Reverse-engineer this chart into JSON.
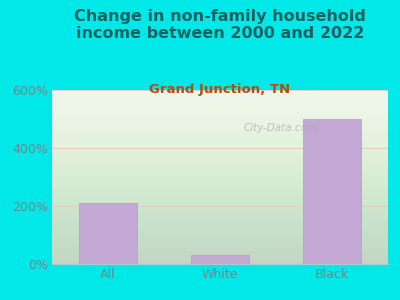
{
  "title": "Change in non-family household\nincome between 2000 and 2022",
  "subtitle": "Grand Junction, TN",
  "categories": [
    "All",
    "White",
    "Black"
  ],
  "values": [
    210,
    30,
    500
  ],
  "bar_color": "#c4a8d4",
  "bar_edge_color": "#b898c8",
  "title_color": "#1a6060",
  "subtitle_color": "#b05010",
  "tick_label_color": "#708888",
  "bg_color": "#00e8e8",
  "plot_bg_color": "#eef5e8",
  "ylim": [
    0,
    600
  ],
  "yticks": [
    0,
    200,
    400,
    600
  ],
  "ytick_labels": [
    "0%",
    "200%",
    "400%",
    "600%"
  ],
  "grid_color": "#e8c8c8",
  "watermark": "City-Data.com",
  "title_fontsize": 11.5,
  "subtitle_fontsize": 9.5,
  "tick_fontsize": 9
}
